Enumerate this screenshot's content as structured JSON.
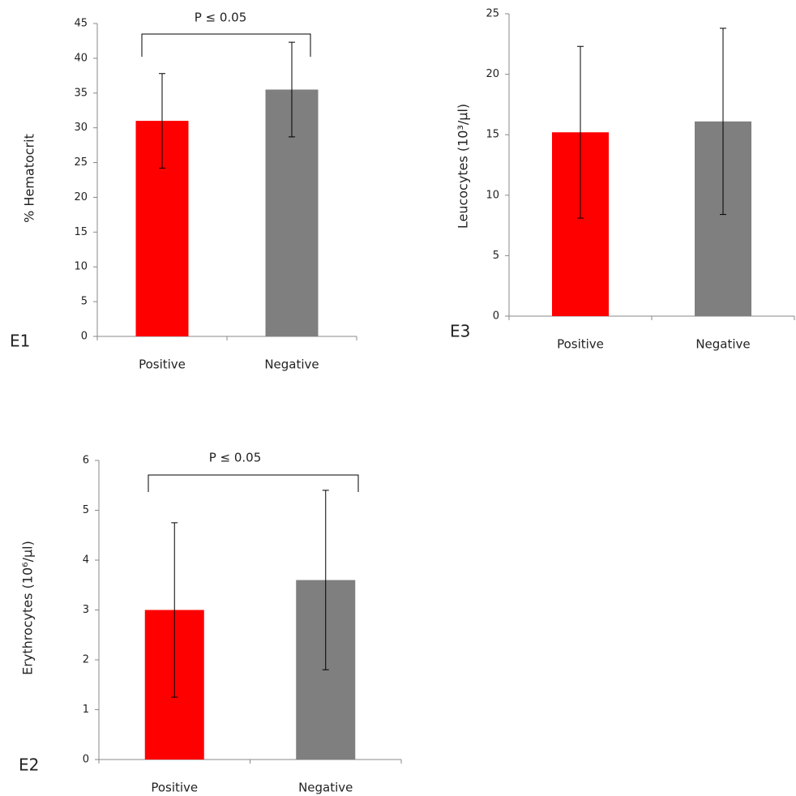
{
  "chart_data": [
    {
      "type": "bar",
      "label": "E1",
      "y_label": "% Hematocrit",
      "annotation": "P ≤ 0.05",
      "categories": [
        "Positive",
        "Negative"
      ],
      "values": [
        31,
        35.5
      ],
      "errors": [
        6.8,
        6.8
      ],
      "colors": [
        "#ff0000",
        "#7f7f7f"
      ],
      "ylim": [
        0,
        45
      ],
      "yticks": [
        0,
        5,
        10,
        15,
        20,
        25,
        30,
        35,
        40,
        45
      ]
    },
    {
      "type": "bar",
      "label": "E3",
      "y_label": "Leucocytes (10³/μl)",
      "categories": [
        "Positive",
        "Negative"
      ],
      "values": [
        15.2,
        16.1
      ],
      "errors": [
        7.1,
        7.7
      ],
      "colors": [
        "#ff0000",
        "#7f7f7f"
      ],
      "ylim": [
        0,
        25
      ],
      "yticks": [
        0,
        5,
        10,
        15,
        20,
        25
      ]
    },
    {
      "type": "bar",
      "label": "E2",
      "y_label": "Erythrocytes (10⁶/μl)",
      "annotation": "P ≤ 0.05",
      "categories": [
        "Positive",
        "Negative"
      ],
      "values": [
        3.0,
        3.6
      ],
      "errors": [
        1.75,
        1.8
      ],
      "colors": [
        "#ff0000",
        "#7f7f7f"
      ],
      "ylim": [
        0,
        6
      ],
      "yticks": [
        0,
        1,
        2,
        3,
        4,
        5,
        6
      ]
    }
  ]
}
